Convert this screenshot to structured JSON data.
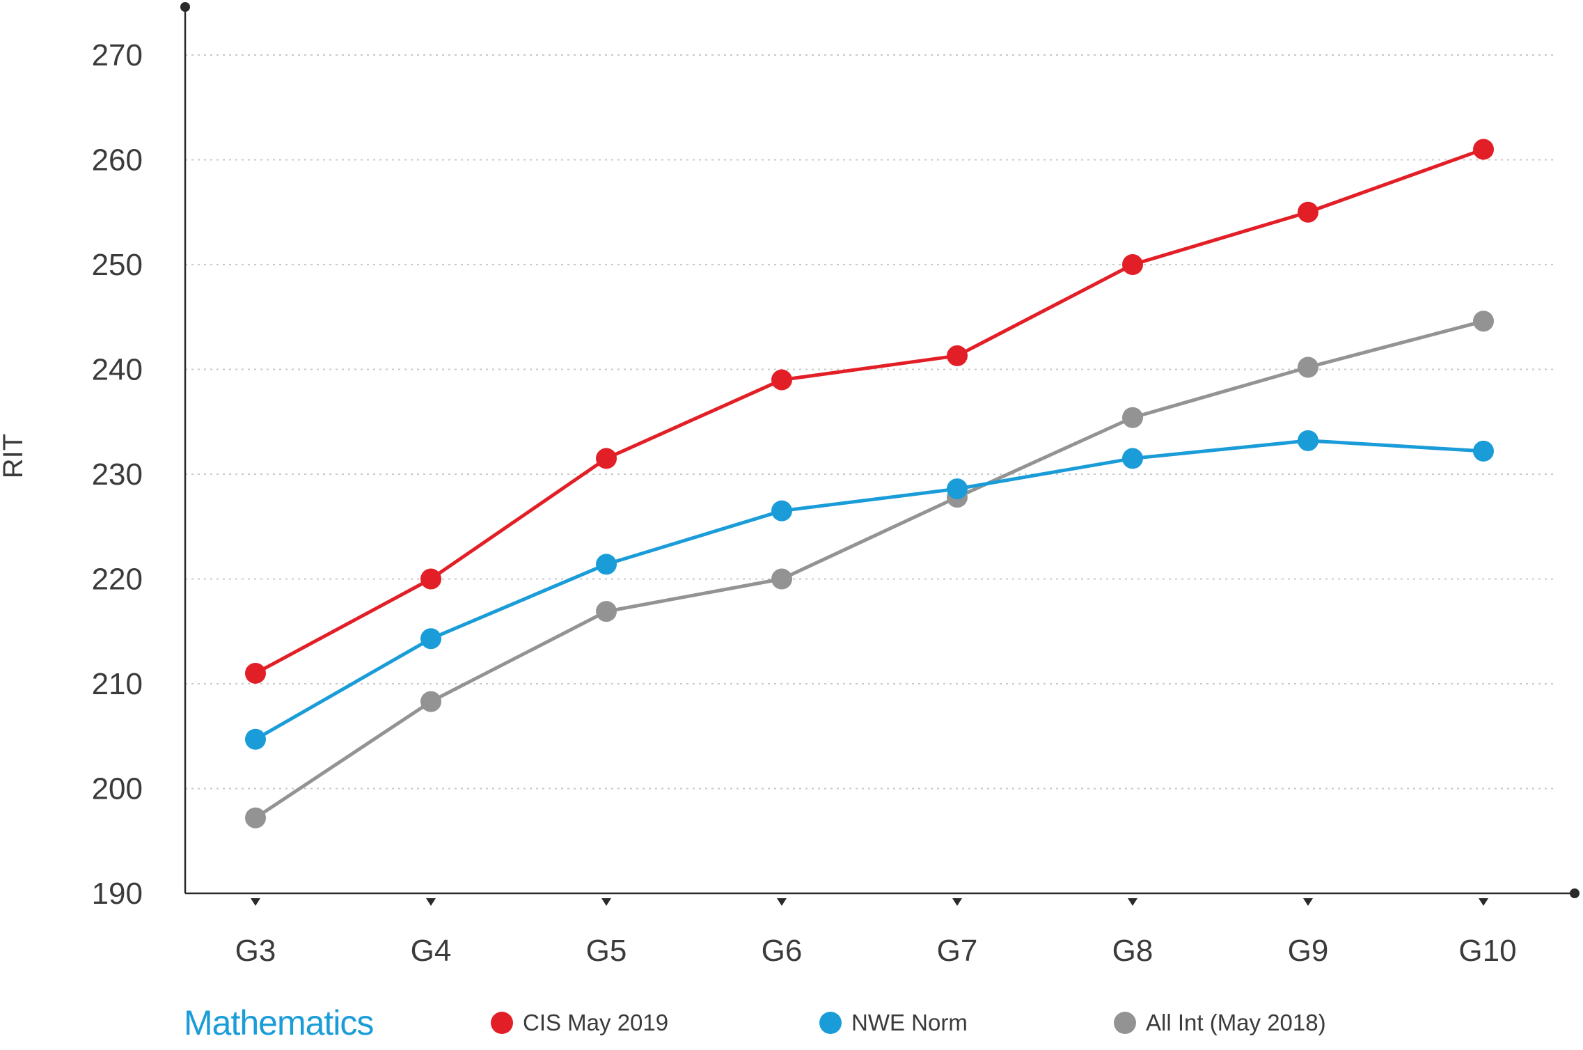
{
  "chart_data": {
    "type": "line",
    "title": "",
    "xlabel": "",
    "ylabel": "RIT",
    "categories": [
      "G3",
      "G4",
      "G5",
      "G6",
      "G7",
      "G8",
      "G9",
      "G10"
    ],
    "ylim": [
      190,
      270
    ],
    "yticks": [
      190,
      200,
      210,
      220,
      230,
      240,
      250,
      260,
      270
    ],
    "grid": true,
    "legend_title": "Mathematics",
    "legend_position": "bottom",
    "series": [
      {
        "name": "CIS May 2019",
        "color": "#e21f26",
        "values": [
          211,
          220,
          231.5,
          239,
          241.3,
          250,
          255,
          261
        ]
      },
      {
        "name": "NWE Norm",
        "color": "#1a9cd8",
        "values": [
          204.7,
          214.3,
          221.4,
          226.5,
          228.6,
          231.5,
          233.2,
          232.2
        ]
      },
      {
        "name": "All Int (May 2018)",
        "color": "#939393",
        "values": [
          197.2,
          208.3,
          216.9,
          220,
          227.8,
          235.4,
          240.2,
          244.6
        ]
      }
    ],
    "colors": {
      "axis": "#2a2a2a",
      "grid": "#c8c8c8",
      "text": "#3b3b3b",
      "legend_title": "#1a9cd8"
    }
  }
}
